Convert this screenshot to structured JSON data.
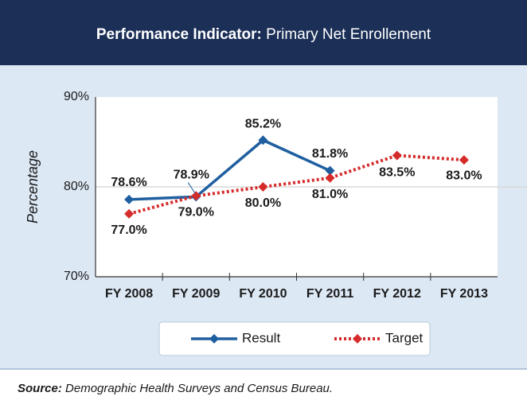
{
  "chart_data": {
    "type": "line",
    "title_prefix": "Performance Indicator:",
    "title": "Primary Net Enrollement",
    "ylabel": "Percentage",
    "categories": [
      "FY 2008",
      "FY 2009",
      "FY 2010",
      "FY 2011",
      "FY 2012",
      "FY 2013"
    ],
    "series": [
      {
        "name": "Result",
        "color": "#1f5fa0",
        "values": [
          78.6,
          78.9,
          85.2,
          81.8,
          null,
          null
        ],
        "value_labels": [
          "78.6%",
          "78.9%",
          "85.2%",
          "81.8%",
          null,
          null
        ]
      },
      {
        "name": "Target",
        "color": "#d62b2b",
        "dashed": true,
        "values": [
          77.0,
          79.0,
          80.0,
          81.0,
          83.5,
          83.0
        ],
        "value_labels": [
          "77.0%",
          "79.0%",
          "80.0%",
          "81.0%",
          "83.5%",
          "83.0%"
        ]
      }
    ],
    "ylim": [
      70,
      90
    ],
    "yticks": [
      {
        "value": 70,
        "label": "70%"
      },
      {
        "value": 80,
        "label": "80%"
      },
      {
        "value": 90,
        "label": "90%"
      }
    ],
    "grid": true,
    "source_label": "Source:",
    "source": "Demographic Health Surveys and Census Bureau."
  }
}
